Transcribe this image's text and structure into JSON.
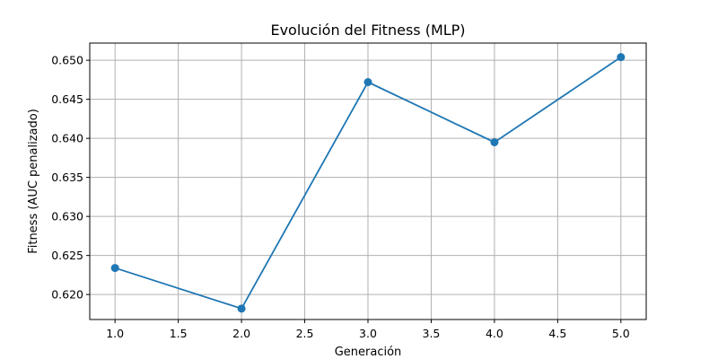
{
  "chart_data": {
    "type": "line",
    "title": "Evolución del Fitness (MLP)",
    "xlabel": "Generación",
    "ylabel": "Fitness (AUC penalizado)",
    "x": [
      1,
      2,
      3,
      4,
      5
    ],
    "series": [
      {
        "values": [
          0.6234,
          0.6182,
          0.6472,
          0.6395,
          0.6504
        ],
        "color": "#1f77b4",
        "marker": "circle"
      }
    ],
    "xlim": [
      0.8,
      5.2
    ],
    "ylim": [
      0.6168,
      0.6522
    ],
    "x_ticks": [
      1.0,
      1.5,
      2.0,
      2.5,
      3.0,
      3.5,
      4.0,
      4.5,
      5.0
    ],
    "x_tick_labels": [
      "1.0",
      "1.5",
      "2.0",
      "2.5",
      "3.0",
      "3.5",
      "4.0",
      "4.5",
      "5.0"
    ],
    "y_ticks": [
      0.62,
      0.625,
      0.63,
      0.635,
      0.64,
      0.645,
      0.65
    ],
    "y_tick_labels": [
      "0.620",
      "0.625",
      "0.630",
      "0.635",
      "0.640",
      "0.645",
      "0.650"
    ],
    "grid": true
  }
}
